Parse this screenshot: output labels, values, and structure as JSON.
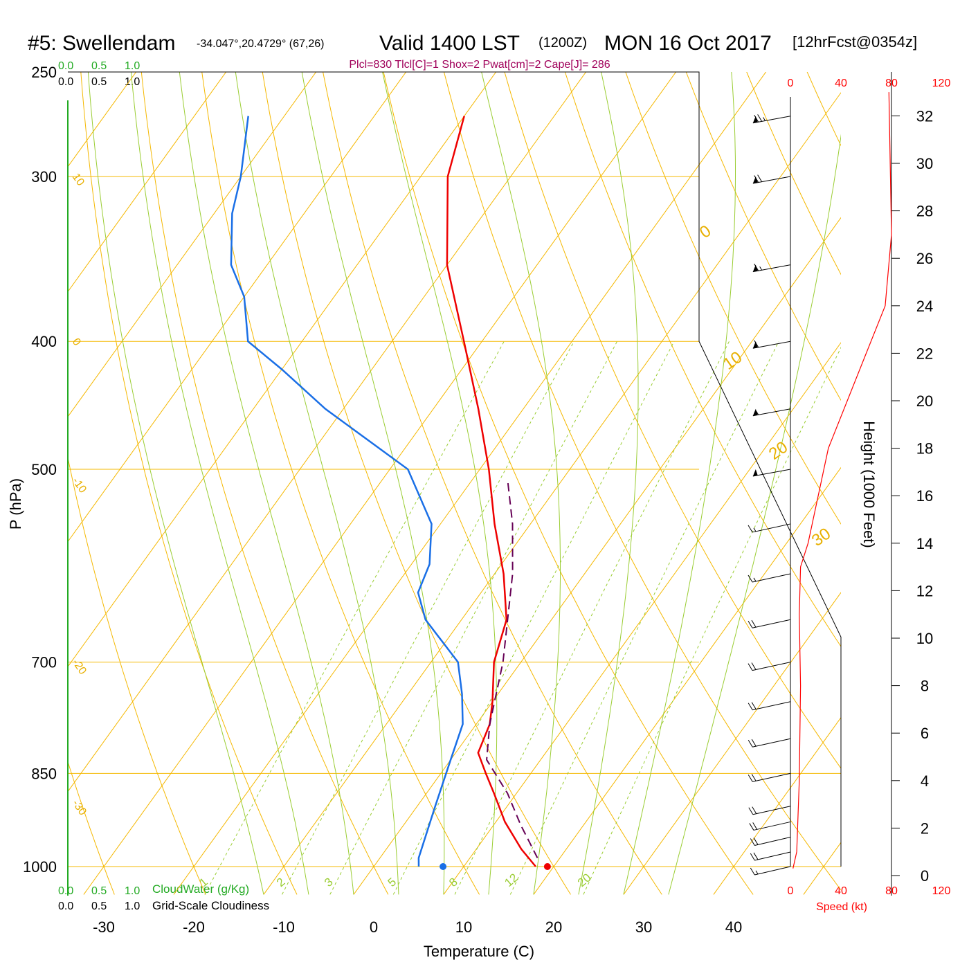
{
  "header": {
    "station": "#5: Swellendam",
    "coords": "-34.047°,20.4729° (67,26)",
    "valid": "Valid 1400 LST",
    "zulu": "(1200Z)",
    "date": "MON 16 Oct 2017",
    "forecast": "[12hrFcst@0354z]"
  },
  "params_line": "Plcl=830 Tlcl[C]=1 Shox=2 Pwat[cm]=2 Cape[J]= 286",
  "colors": {
    "temperature": "#ee0000",
    "dewpoint": "#1a6fe6",
    "parcel": "#660055",
    "isotherm": "#f5b800",
    "moist_adiabat": "#9acd32",
    "mixing_ratio": "#9acd32",
    "wind": "#000000",
    "speed_axis": "#ff0000"
  },
  "cloud": {
    "water_ticks": [
      "0.0",
      "0.5",
      "1.0"
    ],
    "cover_ticks": [
      "0.0",
      "0.5",
      "1.0"
    ],
    "water_label": "CloudWater (g/Kg)",
    "cover_label": "Grid-Scale Cloudiness"
  },
  "speed_axis": {
    "ticks": [
      "0",
      "40",
      "80",
      "120"
    ],
    "label": "Speed (kt)"
  },
  "chart_data": {
    "type": "line",
    "title": "Skew-T log-P sounding",
    "xlabel": "Temperature (C)",
    "ylabel": "P (hPa)",
    "y2label": "Height (1000 Feet)",
    "x_ticks": [
      -30,
      -20,
      -10,
      0,
      10,
      20,
      30,
      40
    ],
    "p_ticks": [
      250,
      300,
      400,
      500,
      700,
      850,
      1000
    ],
    "height_ticks": [
      0,
      2,
      4,
      6,
      8,
      10,
      12,
      14,
      16,
      18,
      20,
      22,
      24,
      26,
      28,
      30,
      32
    ],
    "isotherm_labels": [
      {
        "t": "10",
        "p": 300
      },
      {
        "t": "0",
        "p": 400
      },
      {
        "t": "-10",
        "p": 510
      },
      {
        "t": "-20",
        "p": 700
      },
      {
        "t": "-30",
        "p": 895
      },
      {
        "t": "0",
        "p": 330
      },
      {
        "t": "10",
        "p": 435
      },
      {
        "t": "20",
        "p": 495
      },
      {
        "t": "30",
        "p": 590
      }
    ],
    "mixing_ratio_labels": [
      "1",
      "2",
      "3",
      "5",
      "8",
      "12",
      "20"
    ],
    "mixing_ratios": [
      1,
      2,
      3,
      5,
      8,
      12,
      20
    ],
    "temperature": [
      {
        "p": 1000,
        "t": 18
      },
      {
        "p": 970,
        "t": 15
      },
      {
        "p": 925,
        "t": 11
      },
      {
        "p": 880,
        "t": 7.5
      },
      {
        "p": 850,
        "t": 5
      },
      {
        "p": 820,
        "t": 2.5
      },
      {
        "p": 780,
        "t": 1.5
      },
      {
        "p": 750,
        "t": 0
      },
      {
        "p": 700,
        "t": -3
      },
      {
        "p": 650,
        "t": -5
      },
      {
        "p": 600,
        "t": -9
      },
      {
        "p": 550,
        "t": -14
      },
      {
        "p": 500,
        "t": -19
      },
      {
        "p": 450,
        "t": -25
      },
      {
        "p": 400,
        "t": -32
      },
      {
        "p": 350,
        "t": -40
      },
      {
        "p": 300,
        "t": -47
      },
      {
        "p": 270,
        "t": -50
      }
    ],
    "dewpoint": [
      {
        "p": 1000,
        "t": 5
      },
      {
        "p": 985,
        "t": 4.3
      },
      {
        "p": 900,
        "t": 2
      },
      {
        "p": 830,
        "t": 0
      },
      {
        "p": 780,
        "t": -1.5
      },
      {
        "p": 740,
        "t": -4
      },
      {
        "p": 700,
        "t": -7
      },
      {
        "p": 650,
        "t": -14
      },
      {
        "p": 620,
        "t": -17
      },
      {
        "p": 590,
        "t": -18
      },
      {
        "p": 550,
        "t": -21
      },
      {
        "p": 500,
        "t": -28
      },
      {
        "p": 450,
        "t": -42
      },
      {
        "p": 420,
        "t": -50
      },
      {
        "p": 400,
        "t": -56
      },
      {
        "p": 370,
        "t": -60
      },
      {
        "p": 350,
        "t": -64
      },
      {
        "p": 320,
        "t": -68
      },
      {
        "p": 300,
        "t": -70
      },
      {
        "p": 270,
        "t": -74
      }
    ],
    "parcel": [
      {
        "p": 985,
        "t": 17.5
      },
      {
        "p": 930,
        "t": 13
      },
      {
        "p": 880,
        "t": 9
      },
      {
        "p": 830,
        "t": 4
      },
      {
        "p": 780,
        "t": 1.5
      },
      {
        "p": 700,
        "t": -2
      },
      {
        "p": 600,
        "t": -8
      },
      {
        "p": 550,
        "t": -12
      },
      {
        "p": 510,
        "t": -16
      }
    ],
    "surface_points": {
      "temperature": 19.3,
      "dewpoint": 7.7,
      "p": 1000
    },
    "wind_profile": [
      {
        "p": 1000,
        "speed": 15,
        "dir": 290
      },
      {
        "p": 975,
        "speed": 20,
        "dir": 290
      },
      {
        "p": 950,
        "speed": 20,
        "dir": 290
      },
      {
        "p": 925,
        "speed": 20,
        "dir": 285
      },
      {
        "p": 900,
        "speed": 20,
        "dir": 280
      },
      {
        "p": 850,
        "speed": 20,
        "dir": 275
      },
      {
        "p": 800,
        "speed": 20,
        "dir": 275
      },
      {
        "p": 750,
        "speed": 20,
        "dir": 275
      },
      {
        "p": 700,
        "speed": 20,
        "dir": 270
      },
      {
        "p": 650,
        "speed": 20,
        "dir": 270
      },
      {
        "p": 600,
        "speed": 15,
        "dir": 270
      },
      {
        "p": 550,
        "speed": 15,
        "dir": 270
      },
      {
        "p": 500,
        "speed": 50,
        "dir": 260
      },
      {
        "p": 450,
        "speed": 55,
        "dir": 260
      },
      {
        "p": 400,
        "speed": 60,
        "dir": 260
      },
      {
        "p": 350,
        "speed": 65,
        "dir": 260
      },
      {
        "p": 300,
        "speed": 70,
        "dir": 260
      },
      {
        "p": 270,
        "speed": 75,
        "dir": 260
      }
    ],
    "wind_speed_profile": [
      {
        "h": 0.3,
        "speed": 2
      },
      {
        "h": 1,
        "speed": 5
      },
      {
        "h": 4,
        "speed": 7
      },
      {
        "h": 8,
        "speed": 8
      },
      {
        "h": 11,
        "speed": 7
      },
      {
        "h": 13,
        "speed": 8
      },
      {
        "h": 14,
        "speed": 14
      },
      {
        "h": 18,
        "speed": 30
      },
      {
        "h": 22,
        "speed": 60
      },
      {
        "h": 24,
        "speed": 75
      },
      {
        "h": 27,
        "speed": 80
      },
      {
        "h": 33,
        "speed": 78
      }
    ]
  }
}
